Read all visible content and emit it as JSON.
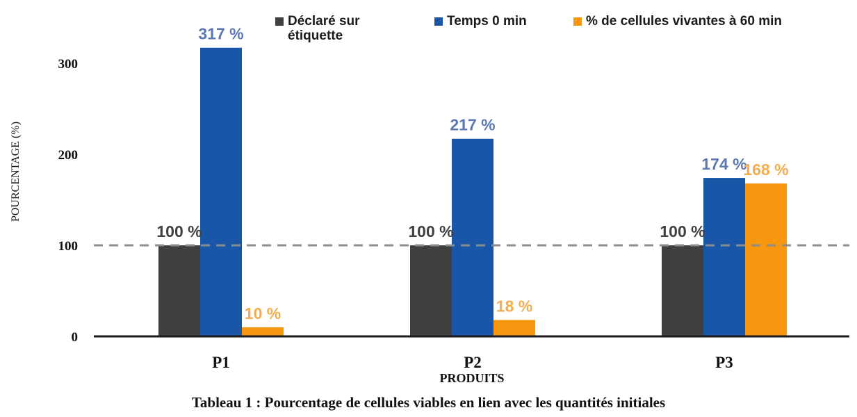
{
  "chart_data": {
    "type": "bar",
    "categories": [
      "P1",
      "P2",
      "P3"
    ],
    "series": [
      {
        "name": "Déclaré sur étiquette",
        "values": [
          100,
          100,
          100
        ],
        "labels": [
          "100 %",
          "100 %",
          "100 %"
        ],
        "color": "#404040",
        "label_color": "#404040"
      },
      {
        "name": "Temps 0 min",
        "values": [
          317,
          217,
          174
        ],
        "labels": [
          "317 %",
          "217 %",
          "174 %"
        ],
        "color": "#1a56a8",
        "label_color": "#5b78b4"
      },
      {
        "name": "% de cellules vivantes à 60 min",
        "values": [
          10,
          18,
          168
        ],
        "labels": [
          "10 %",
          "18 %",
          "168 %"
        ],
        "color": "#f7960f",
        "label_color": "#f2ad4c"
      }
    ],
    "xlabel": "PRODUITS",
    "ylabel": "POURCENTAGE (%)",
    "ylim": [
      0,
      340
    ],
    "yticks": [
      0,
      100,
      200,
      300
    ],
    "reference_line": {
      "value": 100,
      "style": "dashed",
      "color": "#8c8c8c"
    },
    "legend_position": "top",
    "grid": false
  },
  "legend": {
    "item1_line1": "Déclaré sur",
    "item1_line2": "étiquette",
    "item2": "Temps 0 min",
    "item3": "% de cellules vivantes à 60 min"
  },
  "caption": "Tableau 1 : Pourcentage de cellules viables en lien avec les quantités initiales"
}
